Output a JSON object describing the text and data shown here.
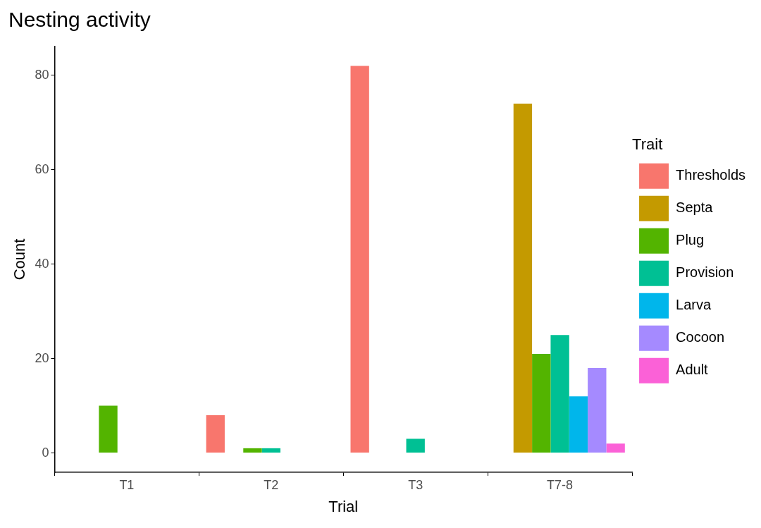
{
  "chart_data": {
    "type": "bar",
    "title": "Nesting activity",
    "xlabel": "Trial",
    "ylabel": "Count",
    "legend_title": "Trait",
    "categories": [
      "T1",
      "T2",
      "T3",
      "T7-8"
    ],
    "series": [
      {
        "name": "Thresholds",
        "color": "#f8766d",
        "values": [
          null,
          8,
          82,
          null
        ]
      },
      {
        "name": "Septa",
        "color": "#c49a00",
        "values": [
          null,
          null,
          null,
          74
        ]
      },
      {
        "name": "Plug",
        "color": "#53b400",
        "values": [
          10,
          1,
          null,
          21
        ]
      },
      {
        "name": "Provision",
        "color": "#00c094",
        "values": [
          null,
          1,
          3,
          25
        ]
      },
      {
        "name": "Larva",
        "color": "#00b6eb",
        "values": [
          null,
          null,
          null,
          12
        ]
      },
      {
        "name": "Cocoon",
        "color": "#a58aff",
        "values": [
          null,
          null,
          null,
          18
        ]
      },
      {
        "name": "Adult",
        "color": "#fb61d7",
        "values": [
          null,
          null,
          null,
          2
        ]
      }
    ],
    "ylim": [
      -4.1,
      86.1
    ],
    "yticks": [
      0,
      20,
      40,
      60,
      80
    ],
    "grid": false,
    "legend": "right"
  }
}
